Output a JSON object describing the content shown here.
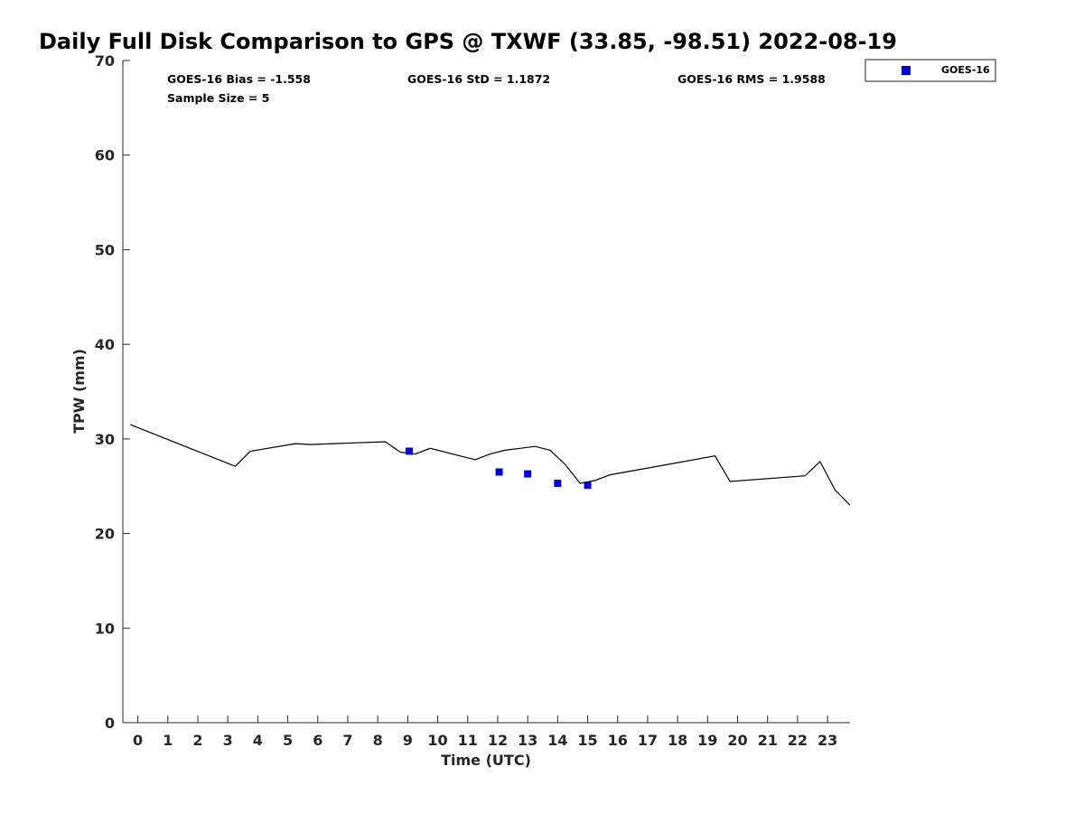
{
  "chart_data": {
    "type": "line",
    "title": "Daily Full Disk Comparison to GPS @ TXWF (33.85, -98.51) 2022-08-19",
    "xlabel": "Time (UTC)",
    "ylabel": "TPW (mm)",
    "xlim": [
      -0.5,
      23.75
    ],
    "ylim": [
      0,
      70
    ],
    "xticks": [
      0,
      1,
      2,
      3,
      4,
      5,
      6,
      7,
      8,
      9,
      10,
      11,
      12,
      13,
      14,
      15,
      16,
      17,
      18,
      19,
      20,
      21,
      22,
      23
    ],
    "yticks": [
      0,
      10,
      20,
      30,
      40,
      50,
      60,
      70
    ],
    "grid": false,
    "legend_position": "outside-top-right",
    "stats": {
      "bias": "GOES-16 Bias = -1.558",
      "std": "GOES-16 StD = 1.1872",
      "rms": "GOES-16 RMS = 1.9588",
      "sample_size": "Sample Size = 5"
    },
    "series": [
      {
        "kind": "line",
        "color": "#000000",
        "x": [
          -0.25,
          3.25,
          3.75,
          5.25,
          5.75,
          8.25,
          8.75,
          9.25,
          9.75,
          11.25,
          11.75,
          12.25,
          12.75,
          13.25,
          13.75,
          14.25,
          14.75,
          15.25,
          15.75,
          19.25,
          19.75,
          22.25,
          22.75,
          23.25,
          23.75
        ],
        "y": [
          31.5,
          27.1,
          28.7,
          29.5,
          29.4,
          29.7,
          28.6,
          28.4,
          29.0,
          27.8,
          28.4,
          28.8,
          29.0,
          29.2,
          28.8,
          27.3,
          25.3,
          25.6,
          26.2,
          28.2,
          25.5,
          26.1,
          27.6,
          24.6,
          23.0
        ]
      },
      {
        "kind": "scatter",
        "name": "GOES-16",
        "marker": "square",
        "color": "#0000d8",
        "x": [
          9.05,
          12.05,
          13.0,
          14.0,
          15.0
        ],
        "y": [
          28.7,
          26.5,
          26.3,
          25.3,
          25.1
        ]
      }
    ]
  }
}
